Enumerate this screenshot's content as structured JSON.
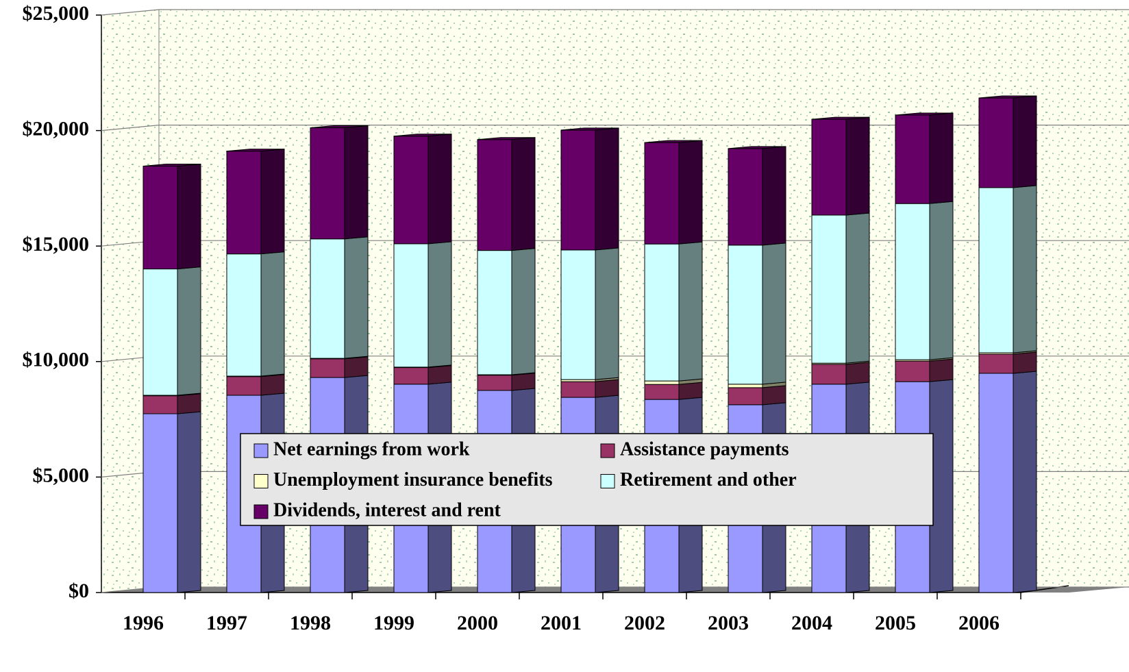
{
  "chart_data": {
    "type": "stacked-bar-3d",
    "categories": [
      "1996",
      "1997",
      "1998",
      "1999",
      "2000",
      "2001",
      "2002",
      "2003",
      "2004",
      "2005",
      "2006"
    ],
    "series": [
      {
        "name": "Net earnings from work",
        "color": "#9999ff",
        "values": [
          7740,
          8540,
          9310,
          9020,
          8750,
          8450,
          8360,
          8130,
          9020,
          9130,
          9490
        ]
      },
      {
        "name": "Assistance payments",
        "color": "#993366",
        "values": [
          780,
          810,
          810,
          720,
          660,
          680,
          650,
          740,
          860,
          890,
          830
        ]
      },
      {
        "name": "Unemployment insurance benefits",
        "color": "#ffffcc",
        "values": [
          20,
          20,
          20,
          20,
          20,
          90,
          150,
          150,
          50,
          60,
          60
        ]
      },
      {
        "name": "Retirement and other",
        "color": "#ccffff",
        "values": [
          5470,
          5290,
          5170,
          5340,
          5380,
          5610,
          5930,
          6020,
          6410,
          6760,
          7150
        ]
      },
      {
        "name": "Dividends, interest and rent",
        "color": "#660066",
        "values": [
          4450,
          4450,
          4810,
          4660,
          4800,
          5190,
          4390,
          4180,
          4150,
          3830,
          3880
        ]
      }
    ],
    "ylim": [
      0,
      25000
    ],
    "yticks": [
      {
        "value": 0,
        "label": "$0"
      },
      {
        "value": 5000,
        "label": "$5,000"
      },
      {
        "value": 10000,
        "label": "$10,000"
      },
      {
        "value": 15000,
        "label": "$15,000"
      },
      {
        "value": 20000,
        "label": "$20,000"
      },
      {
        "value": 25000,
        "label": "$25,000"
      }
    ],
    "grid": true,
    "legend": "center"
  }
}
